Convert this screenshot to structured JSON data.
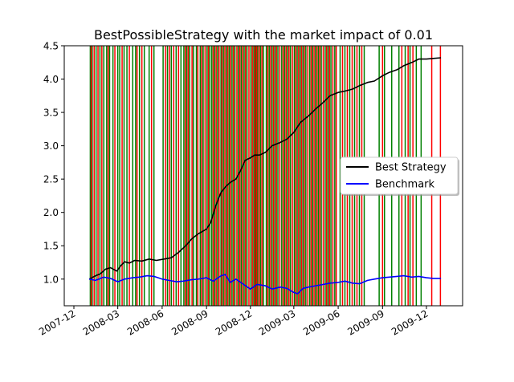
{
  "chart_data": {
    "type": "line",
    "title": "BestPossibleStrategy with the market impact of 0.01",
    "xlabel": "",
    "ylabel": "",
    "xlim": [
      "2007-11-11",
      "2010-02-14"
    ],
    "ylim": [
      0.6,
      4.5
    ],
    "y_ticks": [
      1.0,
      1.5,
      2.0,
      2.5,
      3.0,
      3.5,
      4.0,
      4.5
    ],
    "y_tick_labels": [
      "1.0",
      "1.5",
      "2.0",
      "2.5",
      "3.0",
      "3.5",
      "4.0",
      "4.5"
    ],
    "x_ticks": [
      "2007-12-01",
      "2008-03-01",
      "2008-06-01",
      "2008-09-01",
      "2008-12-01",
      "2009-03-01",
      "2009-06-01",
      "2009-09-01",
      "2009-12-01"
    ],
    "x_tick_labels": [
      "2007-12",
      "2008-03",
      "2008-06",
      "2008-09",
      "2008-12",
      "2009-03",
      "2009-06",
      "2009-09",
      "2009-12"
    ],
    "grid": false,
    "legend_position": "center-right",
    "series": [
      {
        "name": "Best Strategy",
        "color": "#000000",
        "x": [
          "2008-01-02",
          "2008-01-15",
          "2008-01-25",
          "2008-02-05",
          "2008-02-15",
          "2008-02-28",
          "2008-03-07",
          "2008-03-15",
          "2008-03-25",
          "2008-04-05",
          "2008-04-20",
          "2008-05-05",
          "2008-05-20",
          "2008-06-05",
          "2008-06-20",
          "2008-07-05",
          "2008-07-20",
          "2008-08-01",
          "2008-08-15",
          "2008-09-01",
          "2008-09-10",
          "2008-09-20",
          "2008-10-01",
          "2008-10-10",
          "2008-10-20",
          "2008-11-01",
          "2008-11-10",
          "2008-11-20",
          "2008-12-01",
          "2008-12-10",
          "2008-12-20",
          "2009-01-01",
          "2009-01-15",
          "2009-02-01",
          "2009-02-15",
          "2009-03-01",
          "2009-03-15",
          "2009-04-01",
          "2009-04-15",
          "2009-05-01",
          "2009-05-15",
          "2009-06-01",
          "2009-06-15",
          "2009-07-01",
          "2009-07-15",
          "2009-08-01",
          "2009-08-15",
          "2009-09-01",
          "2009-09-15",
          "2009-10-01",
          "2009-10-15",
          "2009-11-01",
          "2009-11-15",
          "2009-12-01",
          "2009-12-15",
          "2009-12-31"
        ],
        "values": [
          1.0,
          1.05,
          1.08,
          1.15,
          1.17,
          1.12,
          1.2,
          1.26,
          1.24,
          1.28,
          1.27,
          1.3,
          1.28,
          1.3,
          1.32,
          1.4,
          1.5,
          1.6,
          1.68,
          1.75,
          1.85,
          2.1,
          2.3,
          2.38,
          2.45,
          2.5,
          2.62,
          2.78,
          2.82,
          2.86,
          2.86,
          2.9,
          3.0,
          3.05,
          3.1,
          3.2,
          3.35,
          3.45,
          3.55,
          3.65,
          3.75,
          3.8,
          3.82,
          3.85,
          3.9,
          3.95,
          3.97,
          4.05,
          4.1,
          4.14,
          4.2,
          4.25,
          4.3,
          4.3,
          4.31,
          4.32
        ]
      },
      {
        "name": "Benchmark",
        "color": "#0000ff",
        "x": [
          "2008-01-02",
          "2008-01-15",
          "2008-02-01",
          "2008-02-15",
          "2008-03-01",
          "2008-03-15",
          "2008-04-01",
          "2008-04-15",
          "2008-05-01",
          "2008-05-15",
          "2008-06-01",
          "2008-06-15",
          "2008-07-01",
          "2008-07-15",
          "2008-08-01",
          "2008-08-15",
          "2008-09-01",
          "2008-09-15",
          "2008-10-01",
          "2008-10-10",
          "2008-10-20",
          "2008-11-01",
          "2008-11-15",
          "2008-12-01",
          "2008-12-15",
          "2009-01-01",
          "2009-01-15",
          "2009-02-01",
          "2009-02-15",
          "2009-03-01",
          "2009-03-09",
          "2009-03-20",
          "2009-04-01",
          "2009-04-15",
          "2009-05-01",
          "2009-05-15",
          "2009-06-01",
          "2009-06-15",
          "2009-07-01",
          "2009-07-15",
          "2009-08-01",
          "2009-08-15",
          "2009-09-01",
          "2009-09-15",
          "2009-10-01",
          "2009-10-15",
          "2009-11-01",
          "2009-11-15",
          "2009-12-01",
          "2009-12-15",
          "2009-12-31"
        ],
        "values": [
          1.0,
          0.98,
          1.03,
          1.01,
          0.96,
          1.0,
          1.02,
          1.03,
          1.05,
          1.04,
          1.0,
          0.98,
          0.96,
          0.97,
          0.99,
          1.0,
          1.02,
          0.97,
          1.05,
          1.07,
          0.95,
          1.0,
          0.93,
          0.85,
          0.92,
          0.9,
          0.85,
          0.88,
          0.86,
          0.8,
          0.78,
          0.86,
          0.88,
          0.9,
          0.92,
          0.94,
          0.95,
          0.97,
          0.94,
          0.93,
          0.98,
          1.0,
          1.02,
          1.03,
          1.04,
          1.05,
          1.03,
          1.04,
          1.02,
          1.01,
          1.01
        ]
      }
    ],
    "signals": {
      "long_color": "#008000",
      "short_color": "#ff0000",
      "long": [
        "2008-01-04",
        "2008-01-08",
        "2008-01-16",
        "2008-01-24",
        "2008-02-01",
        "2008-02-07",
        "2008-02-13",
        "2008-02-20",
        "2008-03-01",
        "2008-03-05",
        "2008-03-14",
        "2008-03-20",
        "2008-04-01",
        "2008-04-07",
        "2008-04-15",
        "2008-04-25",
        "2008-05-05",
        "2008-05-15",
        "2008-06-03",
        "2008-06-12",
        "2008-06-20",
        "2008-06-30",
        "2008-07-10",
        "2008-07-16",
        "2008-07-22",
        "2008-07-28",
        "2008-08-05",
        "2008-08-11",
        "2008-08-19",
        "2008-08-25",
        "2008-09-02",
        "2008-09-08",
        "2008-09-12",
        "2008-09-18",
        "2008-09-24",
        "2008-10-01",
        "2008-10-06",
        "2008-10-12",
        "2008-10-18",
        "2008-10-24",
        "2008-10-30",
        "2008-11-06",
        "2008-11-12",
        "2008-11-18",
        "2008-11-24",
        "2008-12-02",
        "2008-12-08",
        "2008-12-12",
        "2008-12-16",
        "2008-12-22",
        "2008-12-28",
        "2009-01-03",
        "2009-01-09",
        "2009-01-15",
        "2009-01-21",
        "2009-01-27",
        "2009-02-04",
        "2009-02-10",
        "2009-02-16",
        "2009-02-22",
        "2009-03-02",
        "2009-03-08",
        "2009-03-14",
        "2009-03-20",
        "2009-03-26",
        "2009-04-03",
        "2009-04-09",
        "2009-04-15",
        "2009-04-21",
        "2009-04-27",
        "2009-05-05",
        "2009-05-11",
        "2009-05-17",
        "2009-05-25",
        "2009-06-05",
        "2009-06-15",
        "2009-06-25",
        "2009-07-05",
        "2009-07-15",
        "2009-07-25",
        "2009-08-25",
        "2009-09-05",
        "2009-09-20",
        "2009-10-05",
        "2009-10-18",
        "2009-10-28",
        "2009-11-10",
        "2009-11-20"
      ],
      "short": [
        "2008-01-06",
        "2008-01-12",
        "2008-01-20",
        "2008-01-28",
        "2008-02-10",
        "2008-02-24",
        "2008-03-10",
        "2008-03-25",
        "2008-04-10",
        "2008-04-20",
        "2008-05-10",
        "2008-06-08",
        "2008-06-16",
        "2008-06-25",
        "2008-07-05",
        "2008-07-19",
        "2008-07-25",
        "2008-08-02",
        "2008-08-14",
        "2008-08-22",
        "2008-08-29",
        "2008-09-05",
        "2008-09-15",
        "2008-09-21",
        "2008-09-27",
        "2008-10-03",
        "2008-10-09",
        "2008-10-15",
        "2008-10-21",
        "2008-10-27",
        "2008-11-03",
        "2008-11-09",
        "2008-11-15",
        "2008-11-21",
        "2008-11-28",
        "2008-12-05",
        "2008-12-10",
        "2008-12-14",
        "2008-12-19",
        "2008-12-25",
        "2009-01-06",
        "2009-01-12",
        "2009-01-18",
        "2009-01-24",
        "2009-01-31",
        "2009-02-07",
        "2009-02-13",
        "2009-02-19",
        "2009-02-26",
        "2009-03-05",
        "2009-03-11",
        "2009-03-17",
        "2009-03-23",
        "2009-03-30",
        "2009-04-06",
        "2009-04-12",
        "2009-04-18",
        "2009-04-24",
        "2009-05-01",
        "2009-05-08",
        "2009-05-14",
        "2009-05-21",
        "2009-05-28",
        "2009-06-10",
        "2009-06-20",
        "2009-06-30",
        "2009-07-10",
        "2009-07-20",
        "2009-09-01",
        "2009-10-11",
        "2009-10-24",
        "2009-11-03",
        "2009-12-12",
        "2009-12-30"
      ]
    }
  }
}
